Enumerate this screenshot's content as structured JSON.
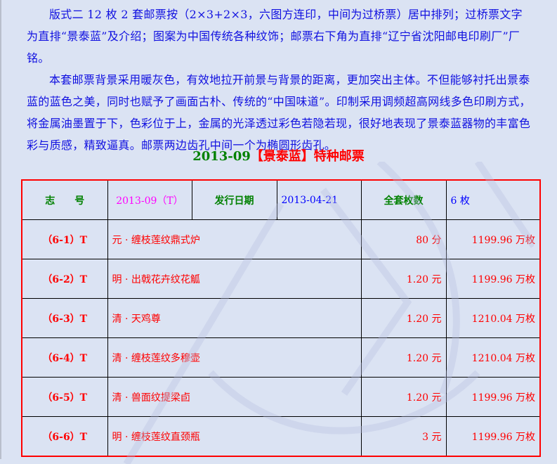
{
  "intro": {
    "paragraphs": [
      "版式二 12 枚 2 套邮票按（2×3+2×3，六图方连印，中间为过桥票）居中排列；过桥票文字为直排“景泰蓝”及介绍；图案为中国传统各种纹饰；邮票右下角为直排“辽宁省沈阳邮电印刷厂”厂铭。",
      "本套邮票背景采用暖灰色，有效地拉开前景与背景的距离，更加突出主体。不但能够衬托出景泰蓝的蓝色之美，同时也赋予了画面古朴、传统的“中国味道”。印制采用调频超高网线多色印刷方式，将金属油墨置于下，色彩位于上，金属的光泽透过彩色若隐若现，很好地表现了景泰蓝器物的丰富色彩与质感，精致逼真。邮票两边齿孔中间一个为椭圆形齿孔。"
    ]
  },
  "title": {
    "code": "2013-09",
    "name": "【景泰蓝】特种邮票"
  },
  "table": {
    "header": {
      "label_code": "志　　号",
      "code": "2013-09（T）",
      "label_date": "发行日期",
      "date": "2013-04-21",
      "label_count": "全套枚数",
      "count": "6 枚"
    },
    "rows": [
      {
        "no": "（6-1）T",
        "name": "元 · 缠枝莲纹鼎式炉",
        "value": "80 分",
        "issued": "1199.96 万枚"
      },
      {
        "no": "（6-2）T",
        "name": "明 · 出戟花卉纹花觚",
        "value": "1.20 元",
        "issued": "1199.96 万枚"
      },
      {
        "no": "（6-3）T",
        "name": "清 · 天鸡尊",
        "value": "1.20 元",
        "issued": "1210.04 万枚"
      },
      {
        "no": "（6-4）T",
        "name": "清 · 缠枝莲纹多穆壶",
        "value": "1.20 元",
        "issued": "1210.04 万枚"
      },
      {
        "no": "（6-5）T",
        "name": "清 · 兽面纹提梁卣",
        "value": "1.20 元",
        "issued": "1199.96 万枚"
      },
      {
        "no": "（6-6）T",
        "name": "明 · 缠枝莲纹直颈瓶",
        "value": "3 元",
        "issued": "1199.96 万枚"
      }
    ]
  }
}
